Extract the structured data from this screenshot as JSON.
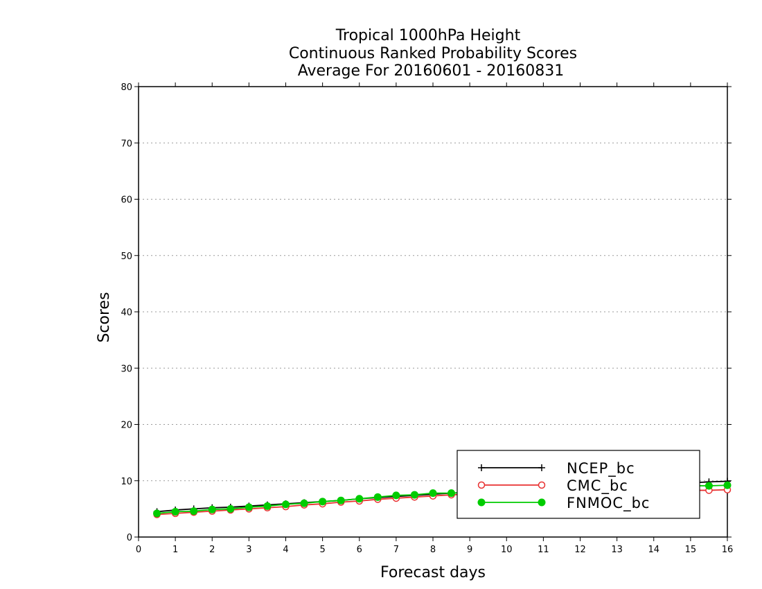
{
  "chart_data": {
    "type": "line",
    "title_lines": [
      "Tropical 1000hPa Height",
      "Continuous Ranked Probability Scores",
      "Average For 20160601 - 20160831"
    ],
    "xlabel": "Forecast days",
    "ylabel": "Scores",
    "xlim": [
      0,
      16
    ],
    "ylim": [
      0,
      80
    ],
    "x_ticks": [
      "0",
      "1",
      "2",
      "3",
      "4",
      "5",
      "6",
      "7",
      "8",
      "9",
      "10",
      "11",
      "12",
      "13",
      "14",
      "15",
      "16"
    ],
    "y_ticks": [
      "0",
      "10",
      "20",
      "30",
      "40",
      "50",
      "60",
      "70",
      "80"
    ],
    "grid": "horizontal dotted",
    "legend_position": "bottom-right",
    "x": [
      0.5,
      1,
      1.5,
      2,
      2.5,
      3,
      3.5,
      4,
      4.5,
      5,
      5.5,
      6,
      6.5,
      7,
      7.5,
      8,
      8.5,
      9,
      9.5,
      10,
      10.5,
      11,
      11.5,
      12,
      12.5,
      13,
      13.5,
      14,
      14.5,
      15,
      15.5,
      16
    ],
    "series": [
      {
        "name": "NCEP_bc",
        "color": "#000000",
        "marker": "plus",
        "values": [
          4.5,
          4.8,
          5.0,
          5.2,
          5.3,
          5.5,
          5.7,
          5.9,
          6.1,
          6.3,
          6.5,
          6.8,
          7.0,
          7.2,
          7.4,
          7.6,
          7.8,
          8.0,
          8.2,
          8.3,
          8.5,
          8.6,
          8.8,
          8.9,
          9.1,
          9.2,
          9.3,
          9.4,
          9.5,
          9.6,
          9.8,
          9.9
        ]
      },
      {
        "name": "CMC_bc",
        "color": "#e83030",
        "marker": "open-circle",
        "values": [
          4.0,
          4.2,
          4.4,
          4.6,
          4.8,
          5.0,
          5.2,
          5.4,
          5.7,
          5.9,
          6.2,
          6.4,
          6.7,
          6.9,
          7.1,
          7.3,
          7.5,
          7.6,
          7.7,
          7.7,
          7.8,
          7.8,
          7.9,
          7.9,
          8.0,
          8.0,
          8.1,
          8.1,
          8.2,
          8.3,
          8.3,
          8.4
        ]
      },
      {
        "name": "FNMOC_bc",
        "color": "#00cc00",
        "marker": "filled-circle",
        "values": [
          4.2,
          4.5,
          4.6,
          4.9,
          5.0,
          5.3,
          5.5,
          5.8,
          6.0,
          6.3,
          6.5,
          6.8,
          7.1,
          7.4,
          7.5,
          7.8,
          7.8,
          7.9,
          8.0,
          8.1,
          8.2,
          8.3,
          8.4,
          8.5,
          8.6,
          8.7,
          8.8,
          8.9,
          9.0,
          9.1,
          9.1,
          9.2
        ]
      }
    ]
  }
}
